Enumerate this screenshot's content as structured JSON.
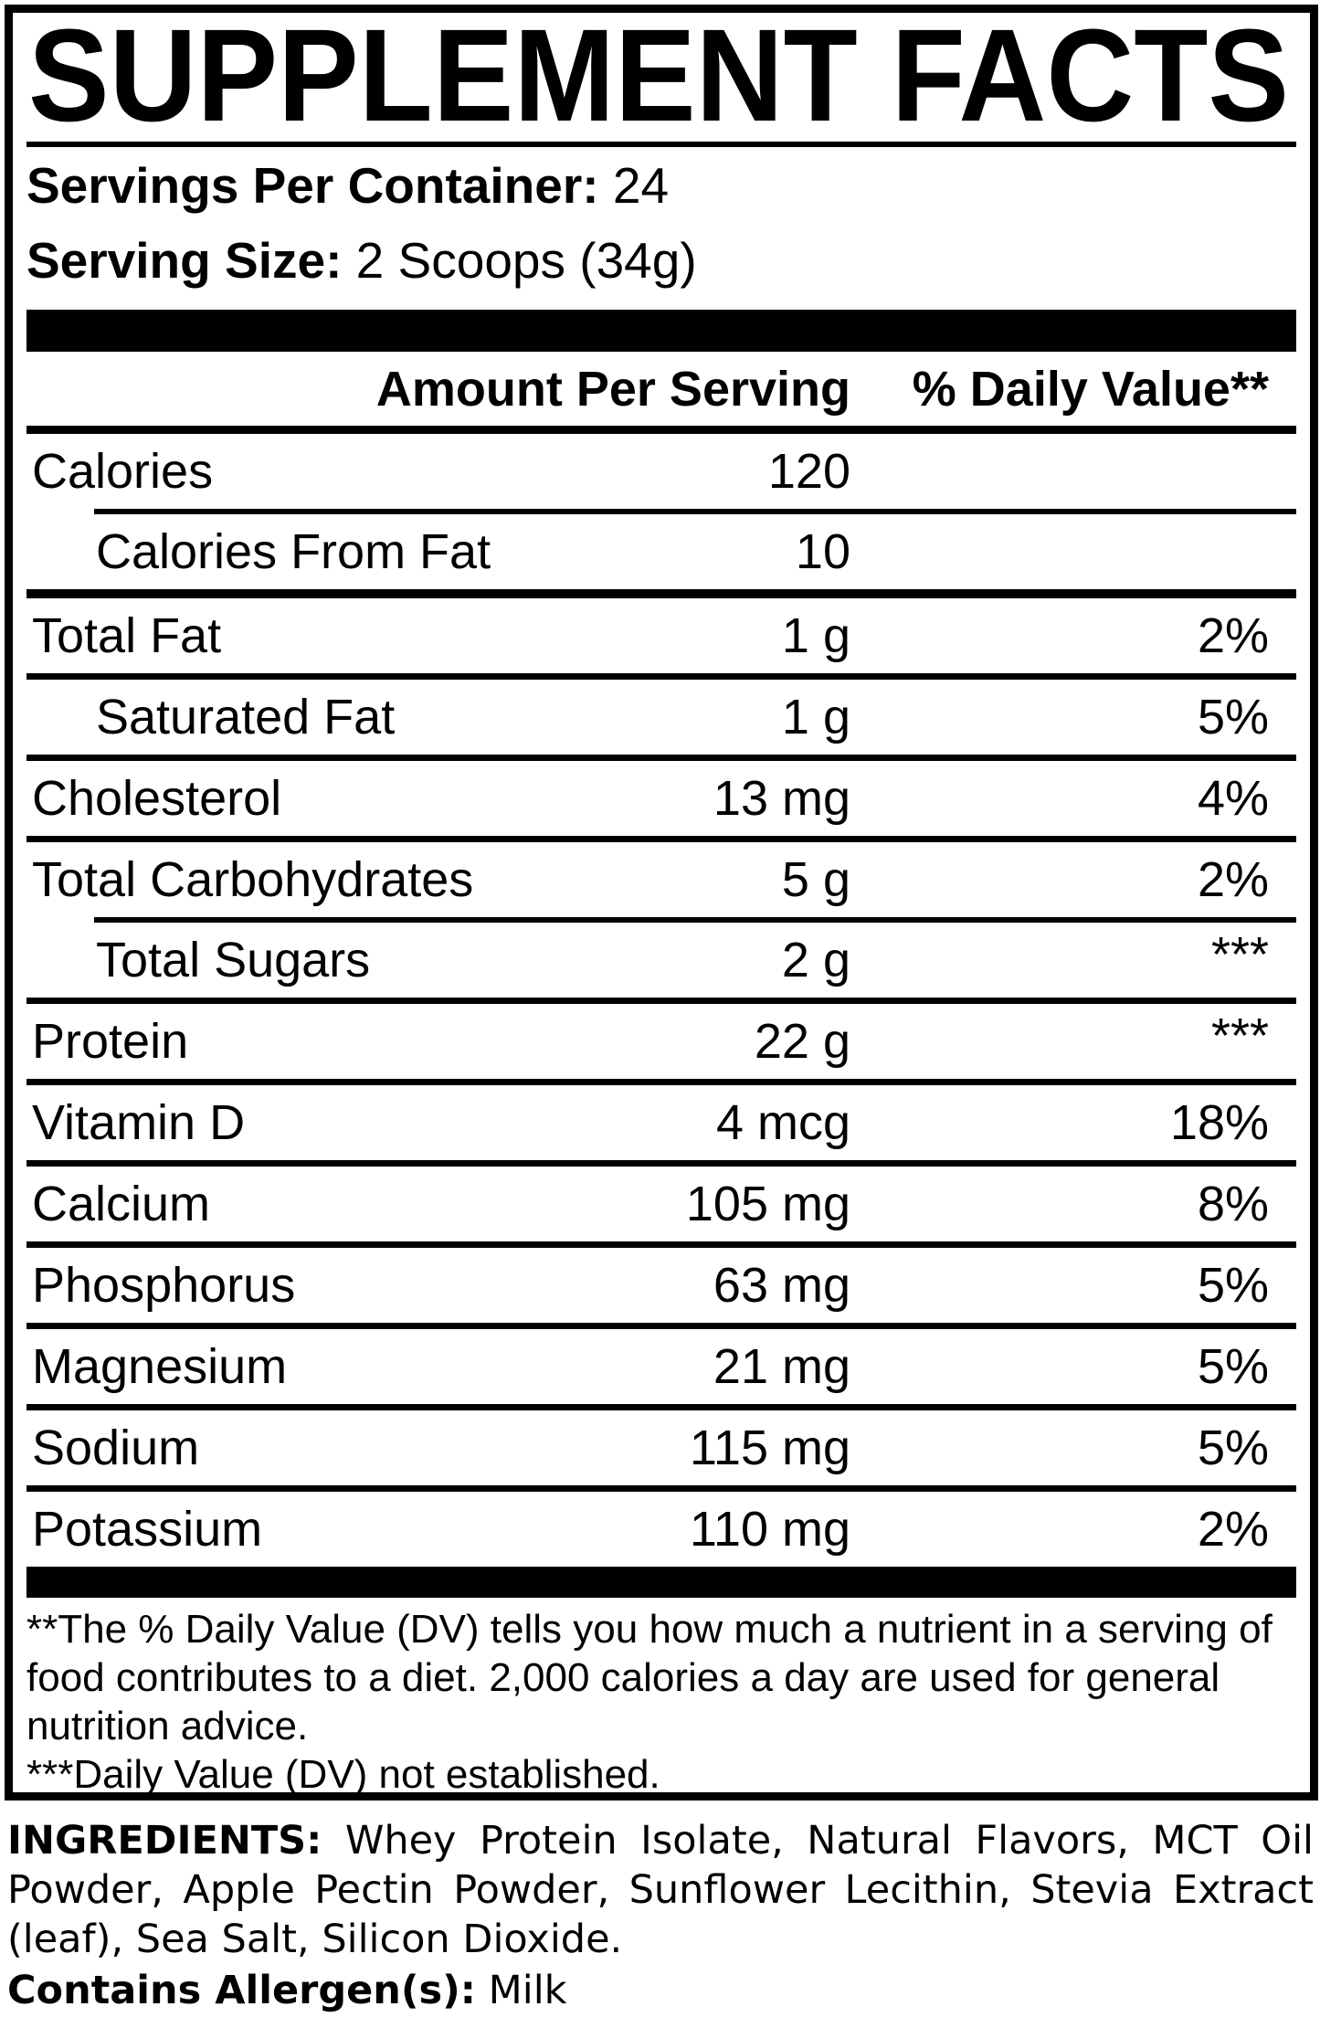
{
  "panel": {
    "title": "SUPPLEMENT FACTS",
    "servings_per_container": {
      "label": "Servings Per Container:",
      "value": "24"
    },
    "serving_size": {
      "label": "Serving Size:",
      "value": "2 Scoops (34g)"
    },
    "table": {
      "amount_header": "Amount Per Serving",
      "dv_header": "% Daily Value**",
      "rows": [
        {
          "name": "Calories",
          "amount": "120",
          "dv": ""
        },
        {
          "name": "Calories From Fat",
          "amount": "10",
          "dv": ""
        },
        {
          "name": "Total Fat",
          "amount": "1 g",
          "dv": "2%"
        },
        {
          "name": "Saturated Fat",
          "amount": "1 g",
          "dv": "5%"
        },
        {
          "name": "Cholesterol",
          "amount": "13 mg",
          "dv": "4%"
        },
        {
          "name": "Total Carbohydrates",
          "amount": "5 g",
          "dv": "2%"
        },
        {
          "name": "Total Sugars",
          "amount": "2 g",
          "dv": "***"
        },
        {
          "name": "Protein",
          "amount": "22 g",
          "dv": "***"
        },
        {
          "name": "Vitamin D",
          "amount": "4 mcg",
          "dv": "18%"
        },
        {
          "name": "Calcium",
          "amount": "105 mg",
          "dv": "8%"
        },
        {
          "name": "Phosphorus",
          "amount": "63 mg",
          "dv": "5%"
        },
        {
          "name": "Magnesium",
          "amount": "21 mg",
          "dv": "5%"
        },
        {
          "name": "Sodium",
          "amount": "115 mg",
          "dv": "5%"
        },
        {
          "name": "Potassium",
          "amount": "110 mg",
          "dv": "2%"
        }
      ]
    },
    "footnotes": {
      "dv_note": "**The % Daily Value (DV) tells you how much a nutrient in a serving of food contributes to a diet. 2,000 calories a day are used for general nutrition advice.",
      "not_established_note": "***Daily Value (DV) not established."
    }
  },
  "ingredients_section": {
    "ingredients_label": "INGREDIENTS:",
    "ingredients_text": "Whey Protein Isolate, Natural Flavors, MCT Oil Powder, Apple Pectin Powder, Sunflower Lecithin, Stevia Extract (leaf), Sea Salt, Silicon Dioxide.",
    "allergen_label": "Contains Allergen(s):",
    "allergen_value": "Milk"
  },
  "colors": {
    "ink": "#000000",
    "paper": "#ffffff"
  }
}
